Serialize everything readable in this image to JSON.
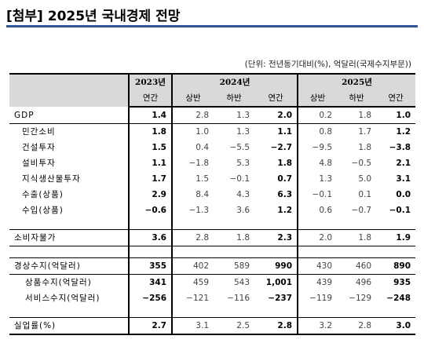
{
  "title": "[첨부] 2025년 국내경제 전망",
  "unit_note": "(단위: 전년동기대비(%), 억달러(국제수지부문))",
  "columns": {
    "y2023": "2023년",
    "y2024": "2024년",
    "y2025": "2025년",
    "sub": [
      "연간",
      "상반",
      "하반",
      "연간",
      "상반",
      "하반",
      "연간"
    ]
  },
  "rows": [
    {
      "label": "GDP",
      "values": [
        "1.4",
        "2.8",
        "1.3",
        "2.0",
        "0.2",
        "1.8",
        "1.0"
      ]
    },
    {
      "label": "민간소비",
      "values": [
        "1.8",
        "1.0",
        "1.3",
        "1.1",
        "0.8",
        "1.7",
        "1.2"
      ]
    },
    {
      "label": "건설투자",
      "values": [
        "1.5",
        "0.4",
        "−5.5",
        "−2.7",
        "−9.5",
        "1.8",
        "−3.8"
      ]
    },
    {
      "label": "설비투자",
      "values": [
        "1.1",
        "−1.8",
        "5.3",
        "1.8",
        "4.8",
        "−0.5",
        "2.1"
      ]
    },
    {
      "label": "지식생산물투자",
      "values": [
        "1.7",
        "1.5",
        "−0.1",
        "0.7",
        "1.3",
        "5.0",
        "3.1"
      ]
    },
    {
      "label": "수출(상품)",
      "values": [
        "2.9",
        "8.4",
        "4.3",
        "6.3",
        "−0.1",
        "0.1",
        "0.0"
      ]
    },
    {
      "label": "수입(상품)",
      "values": [
        "−0.6",
        "−1.3",
        "3.6",
        "1.2",
        "0.6",
        "−0.7",
        "−0.1"
      ]
    },
    {
      "label": "소비자물가",
      "values": [
        "3.6",
        "2.8",
        "1.8",
        "2.3",
        "2.0",
        "1.8",
        "1.9"
      ]
    },
    {
      "label": "경상수지(억달러)",
      "values": [
        "355",
        "402",
        "589",
        "990",
        "430",
        "460",
        "890"
      ]
    },
    {
      "label": "상품수지(억달러)",
      "values": [
        "341",
        "459",
        "543",
        "1,001",
        "439",
        "496",
        "935"
      ]
    },
    {
      "label": "서비스수지(억달러)",
      "values": [
        "−256",
        "−121",
        "−116",
        "−237",
        "−119",
        "−129",
        "−248"
      ]
    },
    {
      "label": "실업률(%)",
      "values": [
        "2.7",
        "3.1",
        "2.5",
        "2.8",
        "3.2",
        "2.8",
        "3.0"
      ]
    }
  ],
  "colors": {
    "header_shade": "#d9d9d9",
    "title_rule": "#2f5597"
  }
}
